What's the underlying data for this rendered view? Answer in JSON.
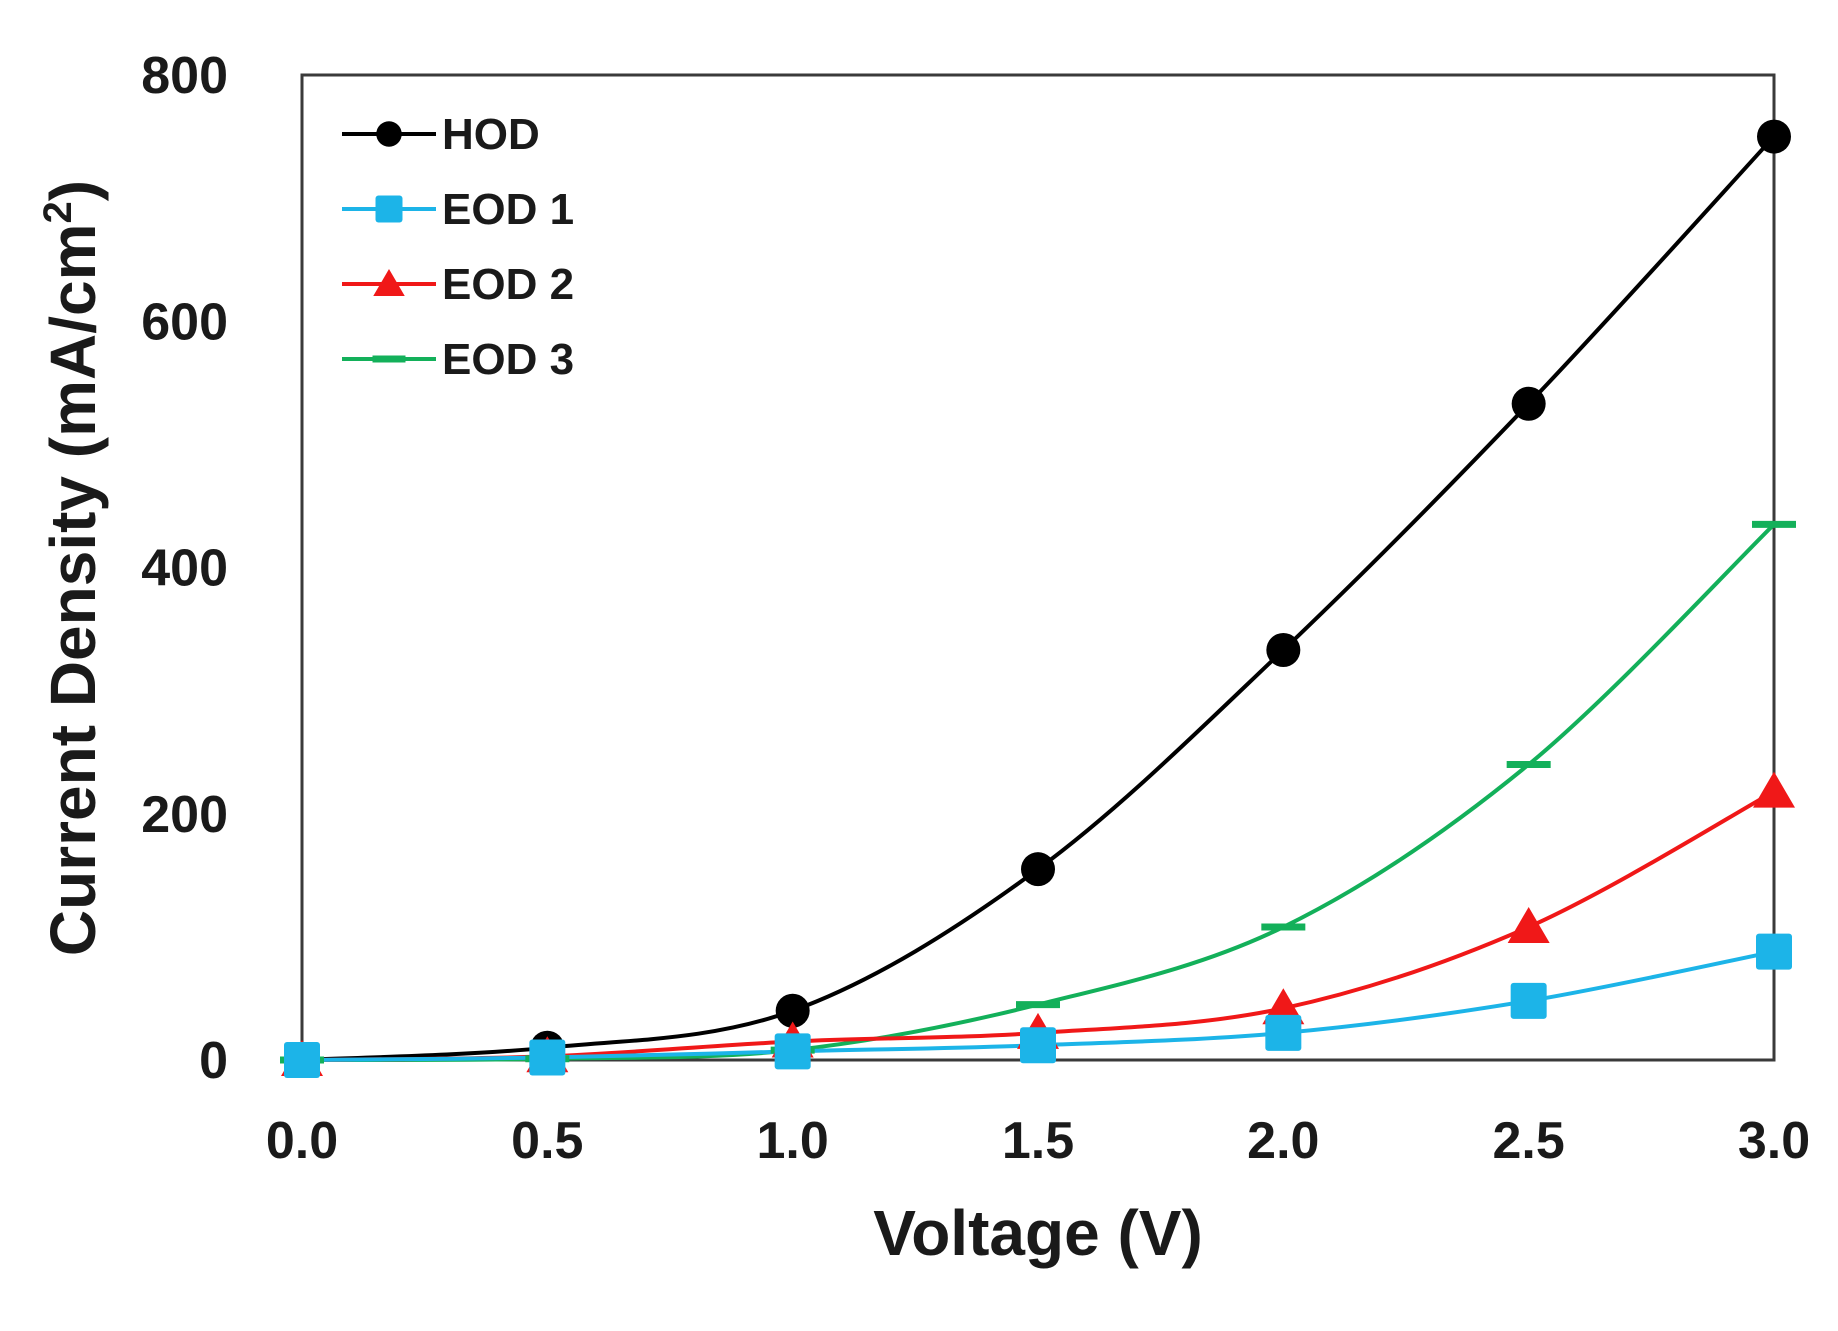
{
  "chart_data": {
    "type": "line",
    "title": "",
    "xlabel": "Voltage (V)",
    "ylabel": "Current Density (mA/cm",
    "ylabel_superscript": "2",
    "ylabel_close": ")",
    "xlim": [
      0,
      3
    ],
    "ylim": [
      0,
      800
    ],
    "xticks": [
      0,
      0.5,
      1,
      1.5,
      2,
      2.5,
      3
    ],
    "xtick_labels": [
      "0.0",
      "0.5",
      "1.0",
      "1.5",
      "2.0",
      "2.5",
      "3.0"
    ],
    "yticks": [
      0,
      200,
      400,
      600,
      800
    ],
    "ytick_labels": [
      "0",
      "200",
      "400",
      "600",
      "800"
    ],
    "grid": false,
    "legend_position": "top-left",
    "x": [
      0,
      0.5,
      1,
      1.5,
      2,
      2.5,
      3
    ],
    "series": [
      {
        "name": "HOD",
        "color": "#000000",
        "marker": "circle",
        "values": [
          0,
          10,
          40,
          155,
          333,
          533,
          750
        ]
      },
      {
        "name": "EOD 1",
        "color": "#1cb4e8",
        "marker": "square",
        "values": [
          0,
          2,
          7,
          12,
          22,
          48,
          88
        ]
      },
      {
        "name": "EOD 2",
        "color": "#f01818",
        "marker": "triangle",
        "values": [
          0,
          3,
          15,
          22,
          42,
          108,
          218
        ]
      },
      {
        "name": "EOD 3",
        "color": "#13b05a",
        "marker": "dash",
        "values": [
          0,
          1,
          8,
          45,
          108,
          240,
          435
        ]
      }
    ]
  }
}
